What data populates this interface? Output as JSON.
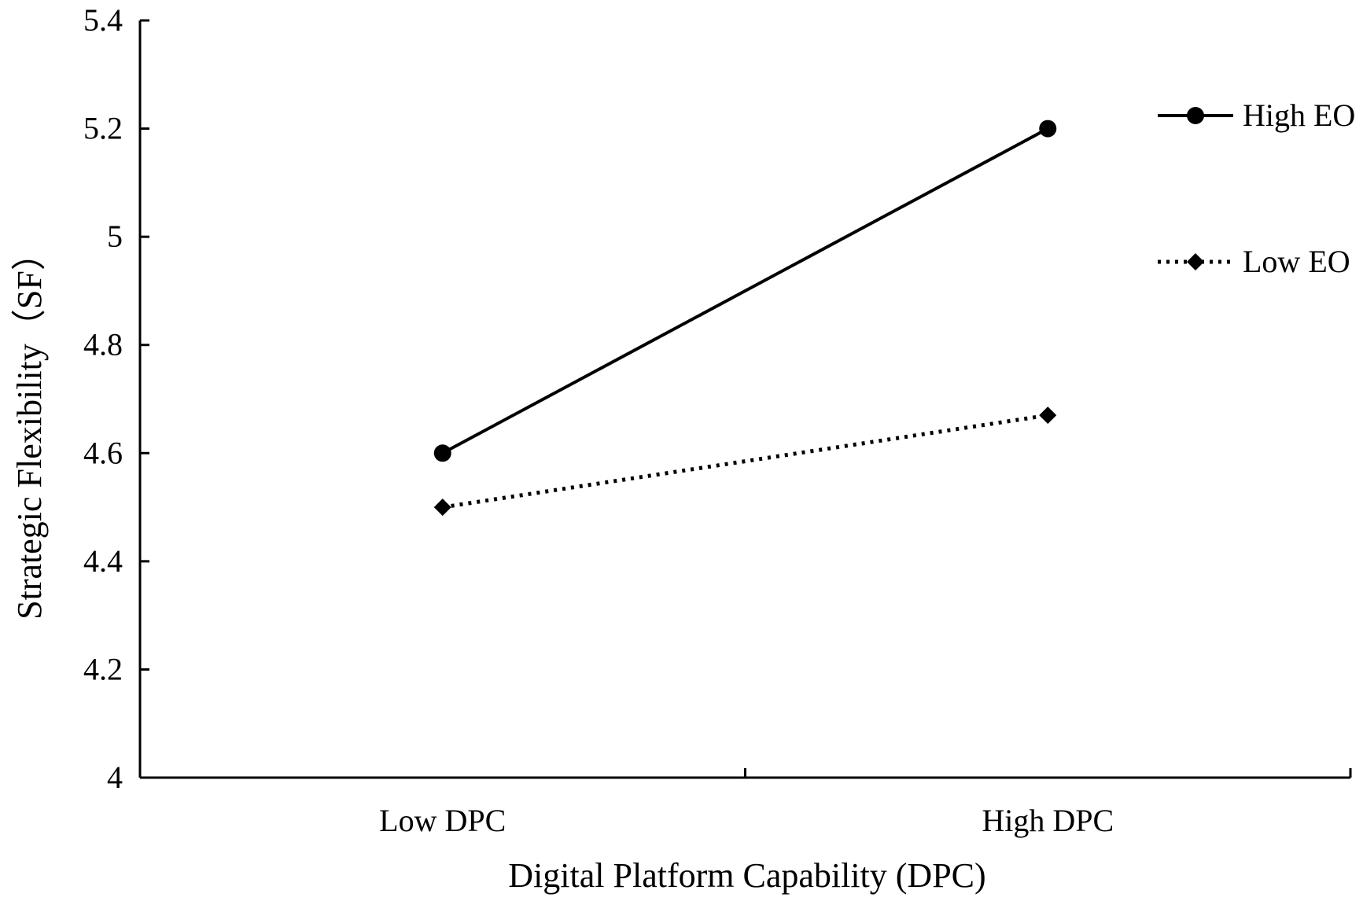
{
  "chart_data": {
    "type": "line",
    "categories": [
      "Low DPC",
      "High DPC"
    ],
    "series": [
      {
        "name": "High EO",
        "values": [
          4.6,
          5.2
        ],
        "line_style": "solid",
        "marker": "circle",
        "color": "#000000"
      },
      {
        "name": "Low EO",
        "values": [
          4.5,
          4.67
        ],
        "line_style": "dotted",
        "marker": "diamond",
        "color": "#000000"
      }
    ],
    "title": "",
    "xlabel": "Digital Platform Capability (DPC)",
    "ylabel": "Strategic Flexibility（SF）",
    "ylim": [
      4,
      5.4
    ],
    "yticks": [
      "4",
      "4.2",
      "4.4",
      "4.6",
      "4.8",
      "5",
      "5.2",
      "5.4"
    ],
    "grid": false,
    "legend_position": "right"
  }
}
